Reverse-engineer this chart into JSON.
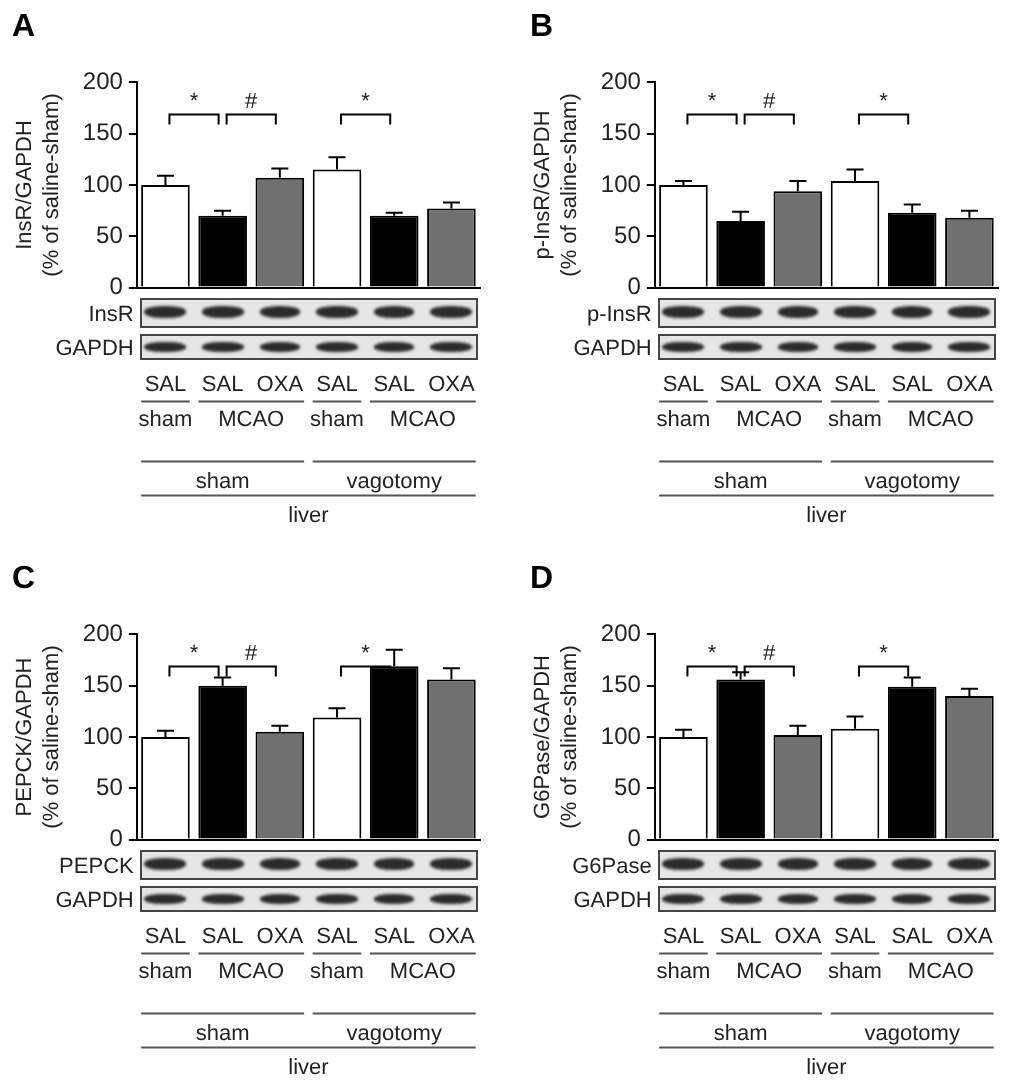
{
  "chart_data": [
    {
      "type": "bar",
      "title": "A",
      "ylabel": "InsR/GAPDH\n(% of saline-sham)",
      "categories": [
        "SAL",
        "SAL",
        "OXA",
        "SAL",
        "SAL",
        "OXA"
      ],
      "values": [
        100,
        70,
        107,
        115,
        70,
        77
      ],
      "colors": [
        "#ffffff",
        "#000000",
        "#707070",
        "#ffffff",
        "#000000",
        "#707070"
      ],
      "errors": [
        [
          100,
          109
        ],
        [
          70,
          75
        ],
        [
          107,
          116
        ],
        [
          115,
          127
        ],
        [
          70,
          73
        ],
        [
          77,
          83
        ]
      ],
      "ylim": [
        0,
        200
      ],
      "yticks": [
        0,
        50,
        100,
        150,
        200
      ],
      "annotations": [
        "*",
        "#",
        "*",
        "InsR",
        "GAPDH",
        "sham",
        "MCAO",
        "sham",
        "MCAO",
        "sham",
        "vagotomy",
        "liver"
      ]
    },
    {
      "type": "bar",
      "title": "B",
      "ylabel": "p-InsR/GAPDH\n(% of saline-sham)",
      "categories": [
        "SAL",
        "SAL",
        "OXA",
        "SAL",
        "SAL",
        "OXA"
      ],
      "values": [
        100,
        65,
        94,
        104,
        73,
        68
      ],
      "colors": [
        "#ffffff",
        "#000000",
        "#707070",
        "#ffffff",
        "#000000",
        "#707070"
      ],
      "errors": [
        [
          100,
          104
        ],
        [
          65,
          74
        ],
        [
          94,
          104
        ],
        [
          104,
          115
        ],
        [
          73,
          81
        ],
        [
          68,
          75
        ]
      ],
      "ylim": [
        0,
        200
      ],
      "yticks": [
        0,
        50,
        100,
        150,
        200
      ],
      "annotations": [
        "*",
        "#",
        "*",
        "p-InsR",
        "GAPDH",
        "sham",
        "MCAO",
        "sham",
        "MCAO",
        "sham",
        "vagotomy",
        "liver"
      ]
    },
    {
      "type": "bar",
      "title": "C",
      "ylabel": "PEPCK/GAPDH\n(% of saline-sham)",
      "categories": [
        "SAL",
        "SAL",
        "OXA",
        "SAL",
        "SAL",
        "OXA"
      ],
      "values": [
        100,
        150,
        105,
        119,
        169,
        156
      ],
      "colors": [
        "#ffffff",
        "#000000",
        "#707070",
        "#ffffff",
        "#000000",
        "#707070"
      ],
      "errors": [
        [
          100,
          106
        ],
        [
          150,
          158
        ],
        [
          105,
          111
        ],
        [
          119,
          128
        ],
        [
          169,
          185
        ],
        [
          156,
          167
        ]
      ],
      "ylim": [
        0,
        200
      ],
      "yticks": [
        0,
        50,
        100,
        150,
        200
      ],
      "annotations": [
        "*",
        "#",
        "*",
        "PEPCK",
        "GAPDH",
        "sham",
        "MCAO",
        "sham",
        "MCAO",
        "sham",
        "vagotomy",
        "liver"
      ]
    },
    {
      "type": "bar",
      "title": "D",
      "ylabel": "G6Pase/GAPDH\n(% of saline-sham)",
      "categories": [
        "SAL",
        "SAL",
        "OXA",
        "SAL",
        "SAL",
        "OXA"
      ],
      "values": [
        100,
        156,
        102,
        108,
        149,
        140
      ],
      "colors": [
        "#ffffff",
        "#000000",
        "#707070",
        "#ffffff",
        "#000000",
        "#707070"
      ],
      "errors": [
        [
          100,
          107
        ],
        [
          156,
          163
        ],
        [
          102,
          111
        ],
        [
          108,
          120
        ],
        [
          149,
          158
        ],
        [
          140,
          147
        ]
      ],
      "ylim": [
        0,
        200
      ],
      "yticks": [
        0,
        50,
        100,
        150,
        200
      ],
      "annotations": [
        "*",
        "#",
        "*",
        "G6Pase",
        "GAPDH",
        "sham",
        "MCAO",
        "sham",
        "MCAO",
        "sham",
        "vagotomy",
        "liver"
      ]
    }
  ]
}
